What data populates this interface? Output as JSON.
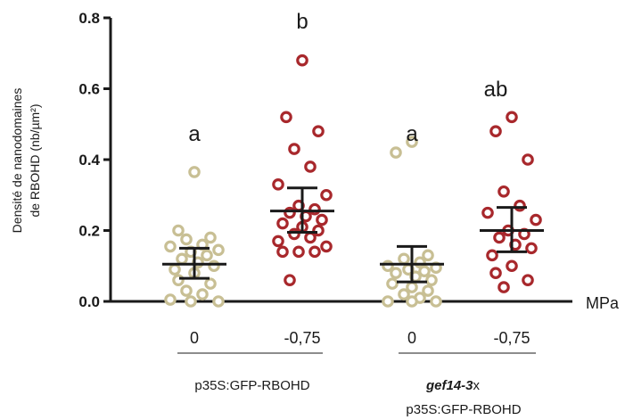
{
  "chart_data": {
    "type": "scatter",
    "ylabel_line1": "Densité de nanodomaines",
    "ylabel_line2": "de RBOHD (nb/µm²)",
    "ylim": [
      0,
      0.8
    ],
    "yticks": [
      "0.0",
      "0.2",
      "0.4",
      "0.6",
      "0.8"
    ],
    "x_unit": "MPa",
    "categories": [
      "0",
      "-0,75",
      "0",
      "-0,75"
    ],
    "groups": [
      {
        "label": "p35S:GFP-RBOHD",
        "categories": [
          0,
          1
        ]
      },
      {
        "label_italic": "gef14-3",
        "label_suffix": "x",
        "label_line2": "p35S:GFP-RBOHD",
        "categories": [
          2,
          3
        ]
      }
    ],
    "colors": {
      "control": "#c8bf94",
      "stress": "#a8282c",
      "axis": "#1a1a1a"
    },
    "series": [
      {
        "category": "0",
        "color": "#c8bf94",
        "letter": "a",
        "mean": 0.105,
        "ci_low": 0.065,
        "ci_high": 0.15,
        "values": [
          0.365,
          0.2,
          0.18,
          0.175,
          0.16,
          0.155,
          0.145,
          0.14,
          0.13,
          0.12,
          0.11,
          0.1,
          0.09,
          0.08,
          0.06,
          0.05,
          0.03,
          0.02,
          0.005,
          0.0,
          0.0
        ]
      },
      {
        "category": "-0,75",
        "color": "#a8282c",
        "letter": "b",
        "mean": 0.255,
        "ci_low": 0.195,
        "ci_high": 0.32,
        "values": [
          0.68,
          0.52,
          0.48,
          0.43,
          0.38,
          0.33,
          0.3,
          0.27,
          0.26,
          0.25,
          0.24,
          0.23,
          0.22,
          0.21,
          0.2,
          0.19,
          0.18,
          0.17,
          0.155,
          0.14,
          0.14,
          0.14,
          0.06
        ]
      },
      {
        "category": "0",
        "color": "#c8bf94",
        "letter": "a",
        "mean": 0.105,
        "ci_low": 0.055,
        "ci_high": 0.155,
        "values": [
          0.45,
          0.42,
          0.13,
          0.12,
          0.11,
          0.1,
          0.095,
          0.09,
          0.085,
          0.08,
          0.07,
          0.06,
          0.05,
          0.04,
          0.03,
          0.02,
          0.01,
          0.0,
          0.0,
          0.0
        ]
      },
      {
        "category": "-0,75",
        "color": "#a8282c",
        "letter": "ab",
        "mean": 0.2,
        "ci_low": 0.14,
        "ci_high": 0.265,
        "values": [
          0.52,
          0.48,
          0.4,
          0.31,
          0.27,
          0.25,
          0.23,
          0.2,
          0.19,
          0.18,
          0.16,
          0.15,
          0.13,
          0.1,
          0.08,
          0.06,
          0.04
        ]
      }
    ]
  }
}
